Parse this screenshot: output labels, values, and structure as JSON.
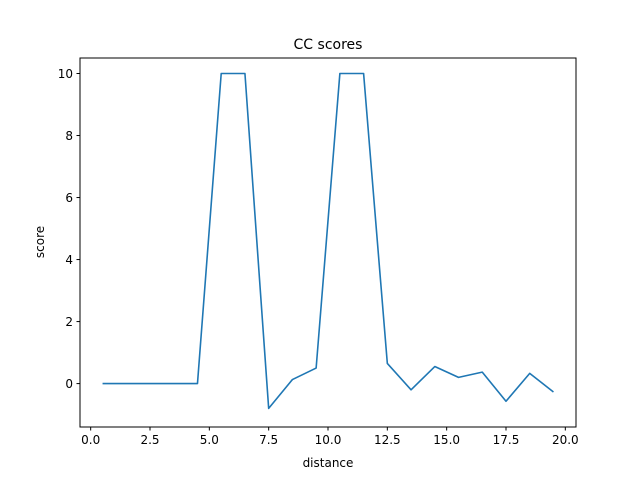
{
  "chart_data": {
    "type": "line",
    "title": "CC scores",
    "xlabel": "distance",
    "ylabel": "score",
    "xlim": [
      -0.45,
      20.45
    ],
    "ylim": [
      -1.4,
      10.5
    ],
    "xticks": [
      0.0,
      2.5,
      5.0,
      7.5,
      10.0,
      12.5,
      15.0,
      17.5,
      20.0
    ],
    "xtick_labels": [
      "0.0",
      "2.5",
      "5.0",
      "7.5",
      "10.0",
      "12.5",
      "15.0",
      "17.5",
      "20.0"
    ],
    "yticks": [
      0,
      2,
      4,
      6,
      8,
      10
    ],
    "ytick_labels": [
      "0",
      "2",
      "4",
      "6",
      "8",
      "10"
    ],
    "grid": false,
    "color": "#1f77b4",
    "x": [
      0.5,
      1.5,
      2.5,
      3.5,
      4.5,
      5.5,
      6.5,
      7.5,
      8.5,
      9.5,
      10.5,
      11.5,
      12.5,
      13.5,
      14.5,
      15.5,
      16.5,
      17.5,
      18.5,
      19.5
    ],
    "y": [
      0,
      0,
      0,
      0,
      0,
      10,
      10,
      -0.8,
      0.13,
      0.5,
      10,
      10,
      0.65,
      -0.2,
      0.55,
      0.2,
      0.37,
      -0.57,
      0.33,
      -0.27
    ]
  }
}
